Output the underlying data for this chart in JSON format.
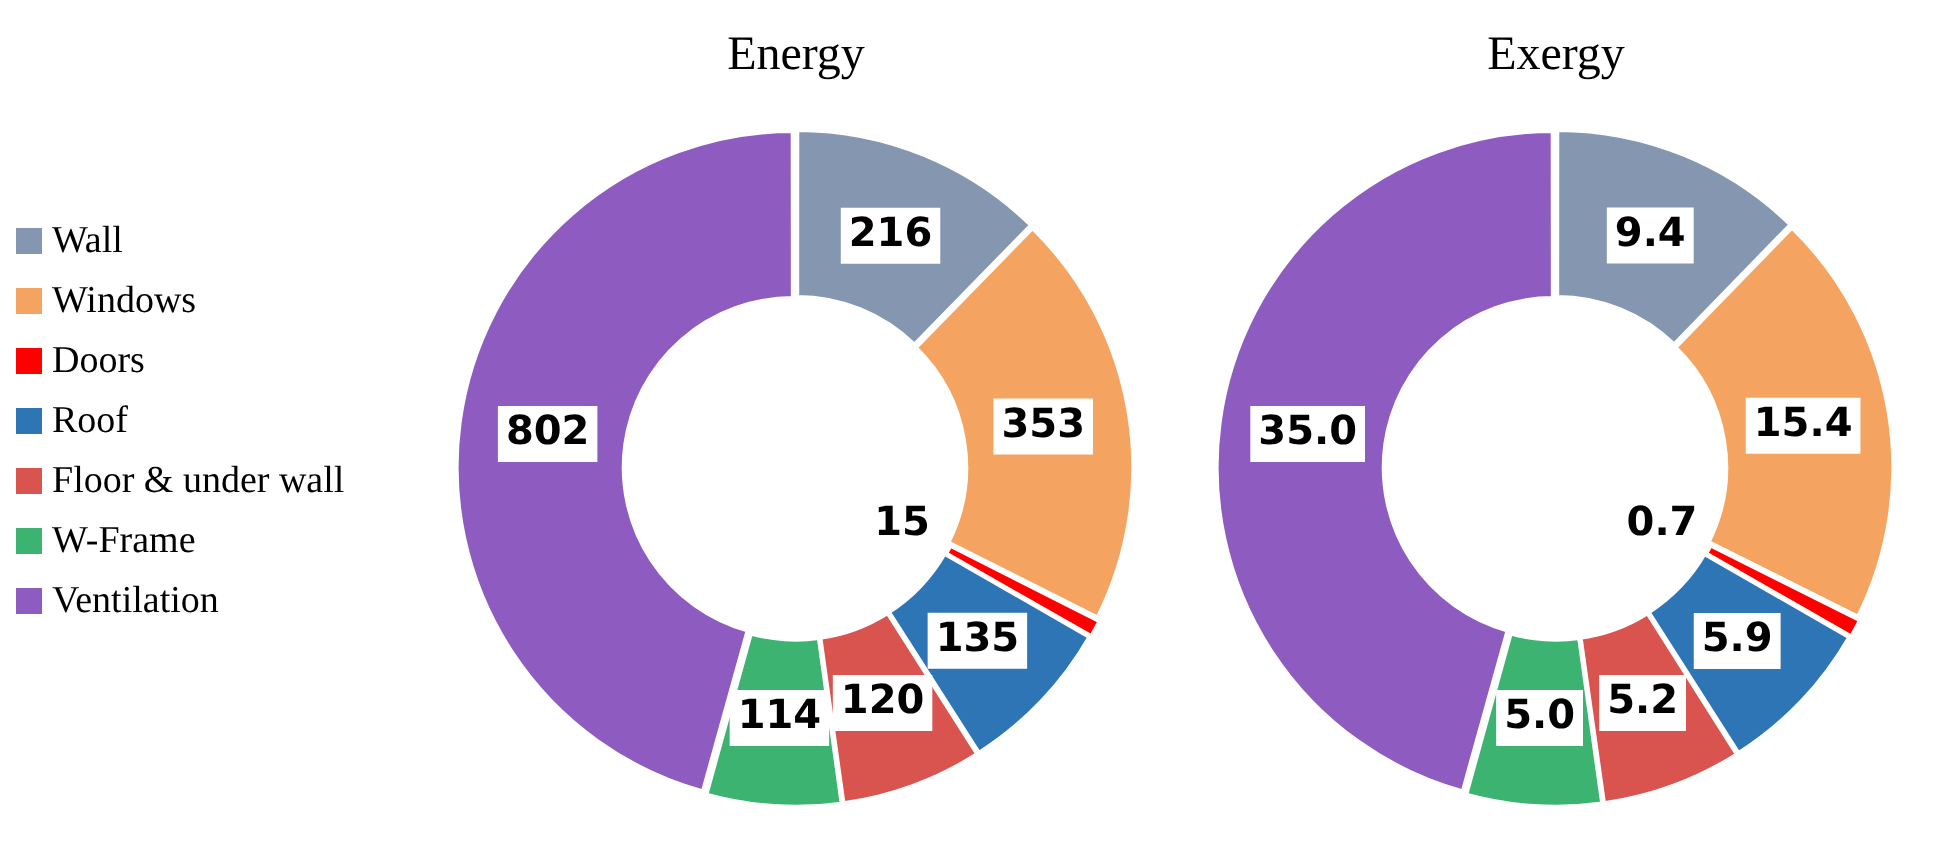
{
  "chart_data": [
    {
      "type": "donut",
      "title": "Energy",
      "categories": [
        "Wall",
        "Windows",
        "Doors",
        "Roof",
        "Floor & under wall",
        "W-Frame",
        "Ventilation"
      ],
      "values": [
        216,
        353,
        15,
        135,
        120,
        114,
        802
      ],
      "colors": [
        "#8496b0",
        "#f4a460",
        "#ff0000",
        "#2e75b6",
        "#d9534f",
        "#3cb371",
        "#8e5cc0"
      ],
      "data_labels": true,
      "legend": "left"
    },
    {
      "type": "donut",
      "title": "Exergy",
      "categories": [
        null,
        null,
        null,
        null,
        null,
        null,
        null
      ],
      "values": [
        9.4,
        15.4,
        0.7,
        5.9,
        5.2,
        5.0,
        35.0
      ],
      "value_labels": [
        "9.4",
        "15.4",
        "0.7",
        "5.9",
        "5.2",
        "5.0",
        "35.0"
      ],
      "colors": [
        "#8496b0",
        "#f4a460",
        "#ff0000",
        "#2e75b6",
        "#d9534f",
        "#3cb371",
        "#8e5cc0"
      ]
    }
  ]
}
